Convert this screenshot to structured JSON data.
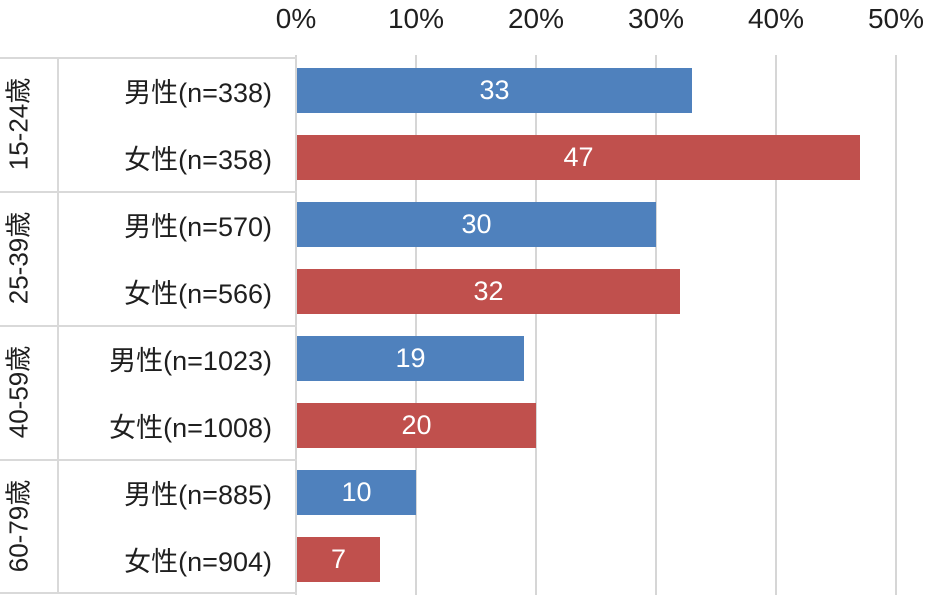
{
  "chart_data": {
    "type": "bar",
    "orientation": "horizontal",
    "title": null,
    "legend": null,
    "value_axis": {
      "position": "top",
      "tick_labels": [
        "0%",
        "10%",
        "20%",
        "30%",
        "40%",
        "50%"
      ],
      "tick_values": [
        0,
        10,
        20,
        30,
        40,
        50
      ],
      "min": 0,
      "max": 52,
      "grid": true
    },
    "categories": [
      "15-24歳",
      "25-39歳",
      "40-59歳",
      "60-79歳"
    ],
    "series": [
      {
        "name": "男性",
        "color_key": "male",
        "values": [
          33,
          30,
          19,
          10
        ]
      },
      {
        "name": "女性",
        "color_key": "female",
        "values": [
          47,
          32,
          20,
          7
        ]
      }
    ],
    "groups": [
      {
        "label": "15-24歳",
        "rows": [
          {
            "label": "男性(n=338)",
            "gender": "male",
            "n": 338,
            "value": 33
          },
          {
            "label": "女性(n=358)",
            "gender": "female",
            "n": 358,
            "value": 47
          }
        ]
      },
      {
        "label": "25-39歳",
        "rows": [
          {
            "label": "男性(n=570)",
            "gender": "male",
            "n": 570,
            "value": 30
          },
          {
            "label": "女性(n=566)",
            "gender": "female",
            "n": 566,
            "value": 32
          }
        ]
      },
      {
        "label": "40-59歳",
        "rows": [
          {
            "label": "男性(n=1023)",
            "gender": "male",
            "n": 1023,
            "value": 19
          },
          {
            "label": "女性(n=1008)",
            "gender": "female",
            "n": 1008,
            "value": 20
          }
        ]
      },
      {
        "label": "60-79歳",
        "rows": [
          {
            "label": "男性(n=885)",
            "gender": "male",
            "n": 885,
            "value": 10
          },
          {
            "label": "女性(n=904)",
            "gender": "female",
            "n": 904,
            "value": 7
          }
        ]
      }
    ],
    "bar_value_labels_visible": true
  },
  "colors": {
    "male_bar": "#4F81BD",
    "female_bar": "#C0504D",
    "bar_label_text": "#FFFFFF",
    "axis_text": "#1F1F1F",
    "gridline": "#D6D6D6",
    "table_border": "#D9D9D9",
    "background": "#FFFFFF"
  }
}
